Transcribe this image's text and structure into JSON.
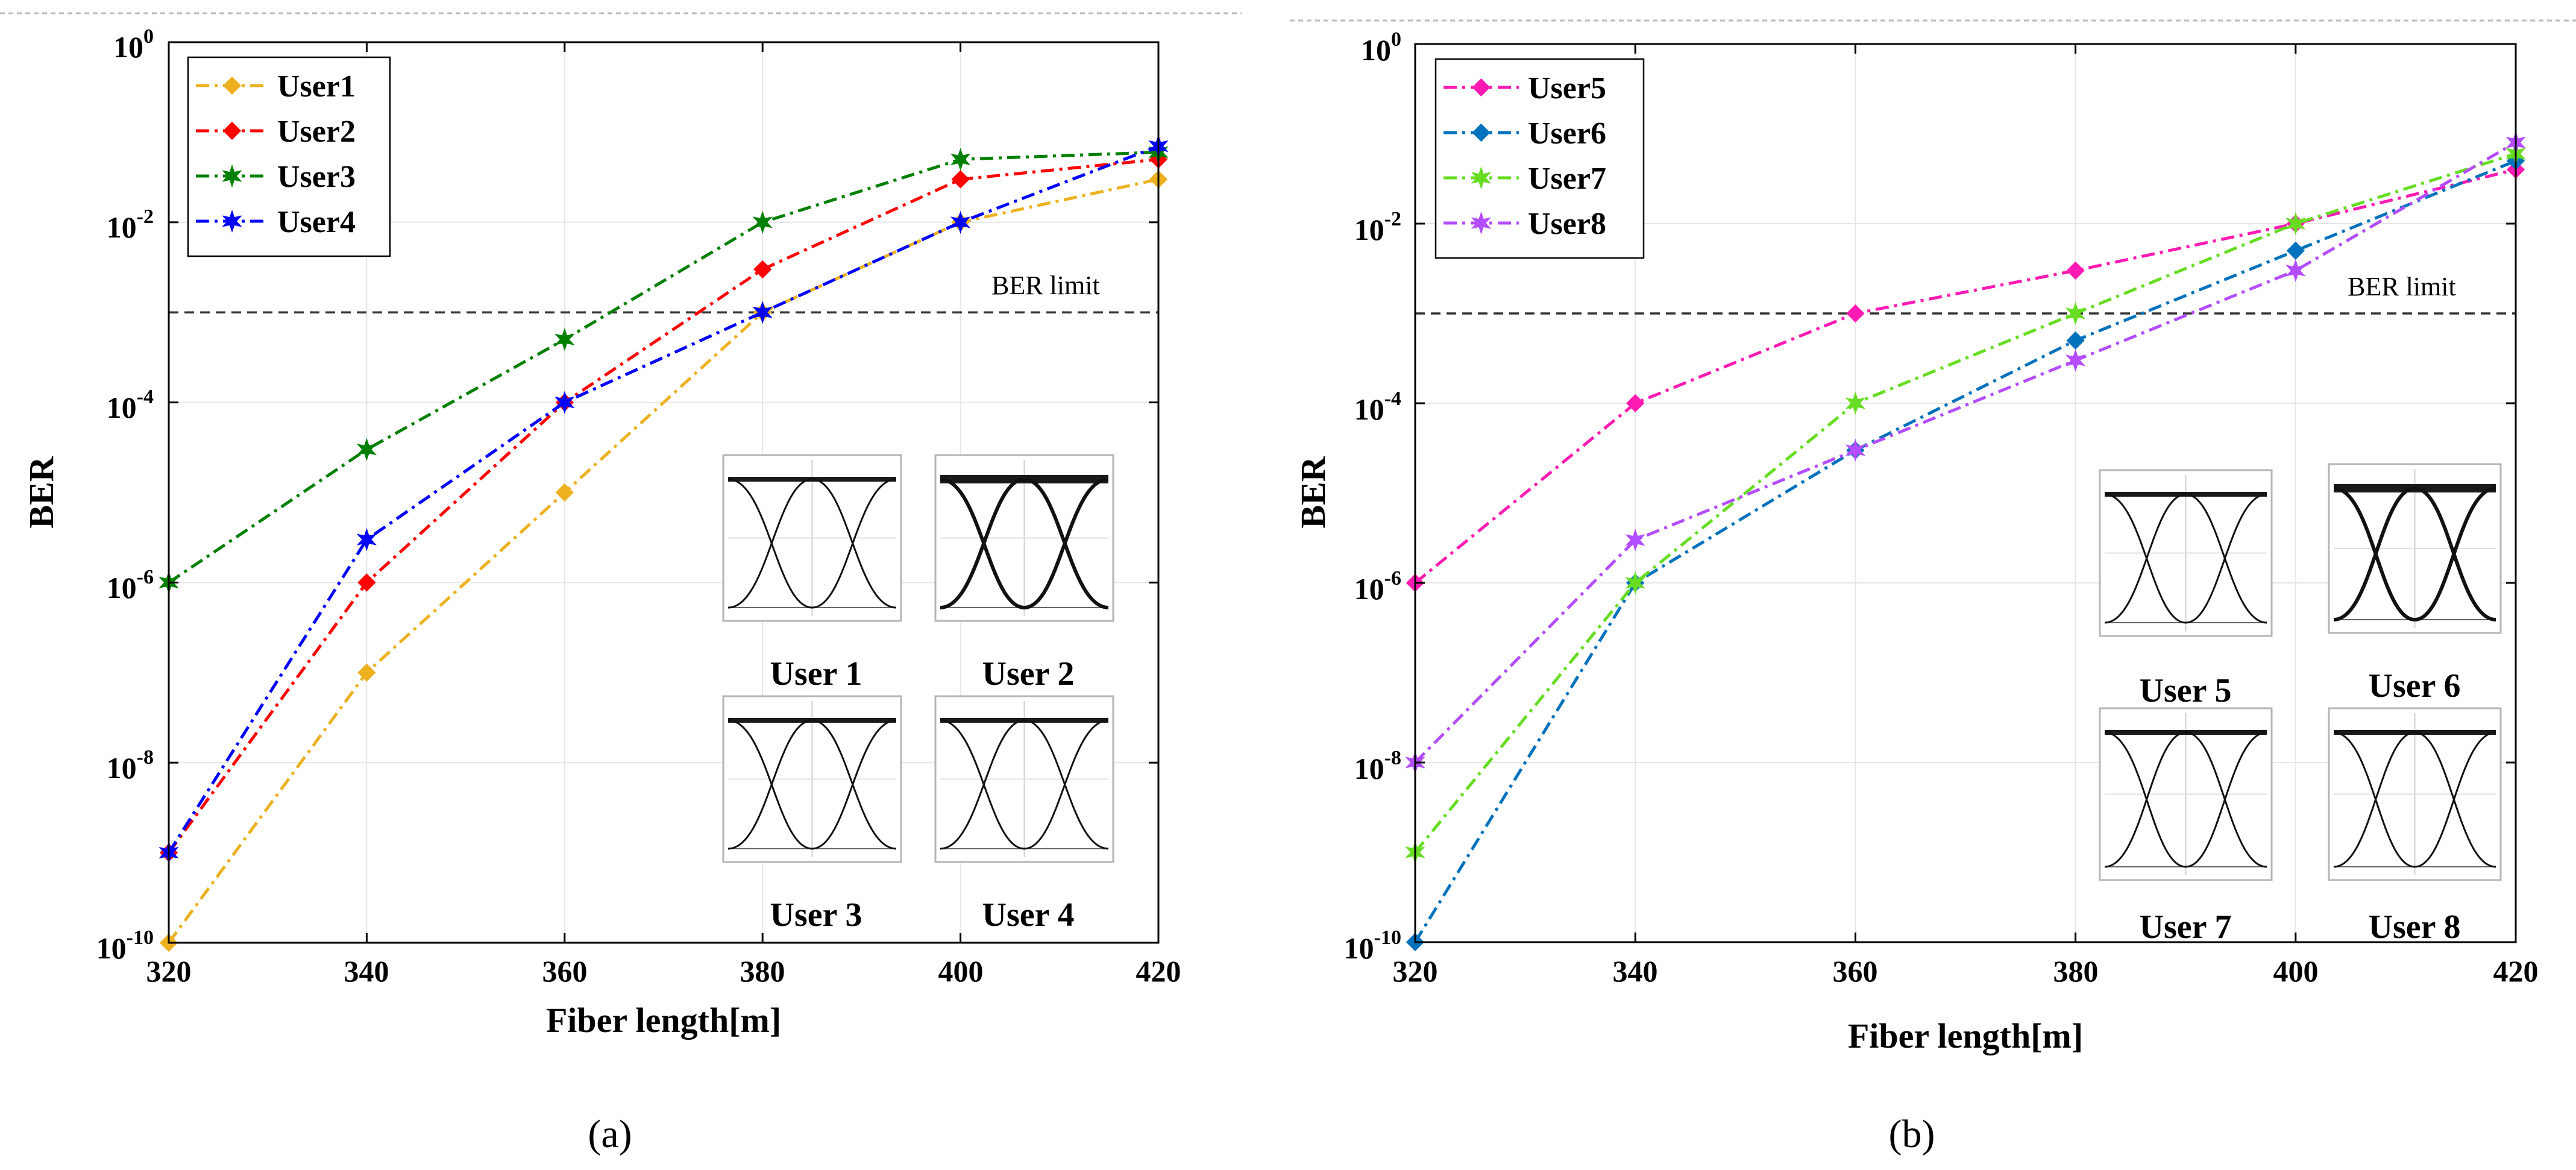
{
  "chart_data": [
    {
      "type": "line",
      "panel": "a",
      "caption": "(a)",
      "xlabel": "Fiber length[m]",
      "ylabel": "BER",
      "yscale": "log",
      "xlim": [
        320,
        420
      ],
      "ylim": [
        1e-10,
        1
      ],
      "grid": true,
      "legend_position": "top-left",
      "x": [
        320,
        340,
        360,
        380,
        400,
        420
      ],
      "xticks": [
        "320",
        "340",
        "360",
        "380",
        "400",
        "420"
      ],
      "yticks": [
        {
          "base": "10",
          "exp": "-10",
          "value": 1e-10
        },
        {
          "base": "10",
          "exp": "-8",
          "value": 1e-08
        },
        {
          "base": "10",
          "exp": "-6",
          "value": 1e-06
        },
        {
          "base": "10",
          "exp": "-4",
          "value": 0.0001
        },
        {
          "base": "10",
          "exp": "-2",
          "value": 0.01
        },
        {
          "base": "10",
          "exp": "0",
          "value": 1
        }
      ],
      "ber_limit": {
        "value": 0.001,
        "label": "BER limit"
      },
      "series": [
        {
          "name": "User1",
          "color": "#EDB120",
          "marker": "diamond",
          "values": [
            1e-10,
            1e-07,
            1e-05,
            0.001,
            0.01,
            0.03
          ]
        },
        {
          "name": "User2",
          "color": "#FF0000",
          "marker": "diamond",
          "values": [
            1e-09,
            1e-06,
            0.0001,
            0.003,
            0.03,
            0.05
          ]
        },
        {
          "name": "User3",
          "color": "#008000",
          "marker": "star",
          "values": [
            1e-06,
            3e-05,
            0.0005,
            0.01,
            0.05,
            0.06
          ]
        },
        {
          "name": "User4",
          "color": "#0000FF",
          "marker": "star",
          "values": [
            1e-09,
            3e-06,
            0.0001,
            0.001,
            0.01,
            0.07
          ]
        }
      ],
      "eye_labels": [
        "User 1",
        "User 2",
        "User 3",
        "User 4"
      ]
    },
    {
      "type": "line",
      "panel": "b",
      "caption": "(b)",
      "xlabel": "Fiber length[m]",
      "ylabel": "BER",
      "yscale": "log",
      "xlim": [
        320,
        420
      ],
      "ylim": [
        1e-10,
        1
      ],
      "grid": true,
      "legend_position": "top-left",
      "x": [
        320,
        340,
        360,
        380,
        400,
        420
      ],
      "xticks": [
        "320",
        "340",
        "360",
        "380",
        "400",
        "420"
      ],
      "yticks": [
        {
          "base": "10",
          "exp": "-10",
          "value": 1e-10
        },
        {
          "base": "10",
          "exp": "-8",
          "value": 1e-08
        },
        {
          "base": "10",
          "exp": "-6",
          "value": 1e-06
        },
        {
          "base": "10",
          "exp": "-4",
          "value": 0.0001
        },
        {
          "base": "10",
          "exp": "-2",
          "value": 0.01
        },
        {
          "base": "10",
          "exp": "0",
          "value": 1
        }
      ],
      "ber_limit": {
        "value": 0.001,
        "label": "BER limit"
      },
      "series": [
        {
          "name": "User5",
          "color": "#FF1AB3",
          "marker": "diamond",
          "values": [
            1e-06,
            0.0001,
            0.001,
            0.003,
            0.01,
            0.04
          ]
        },
        {
          "name": "User6",
          "color": "#0072BD",
          "marker": "diamond",
          "values": [
            1e-10,
            1e-06,
            3e-05,
            0.0005,
            0.005,
            0.05
          ]
        },
        {
          "name": "User7",
          "color": "#66DD22",
          "marker": "star",
          "values": [
            1e-09,
            1e-06,
            0.0001,
            0.001,
            0.01,
            0.06
          ]
        },
        {
          "name": "User8",
          "color": "#B44DFF",
          "marker": "star",
          "values": [
            1e-08,
            3e-06,
            3e-05,
            0.0003,
            0.003,
            0.08
          ]
        }
      ],
      "eye_labels": [
        "User 5",
        "User 6",
        "User 7",
        "User 8"
      ]
    }
  ]
}
